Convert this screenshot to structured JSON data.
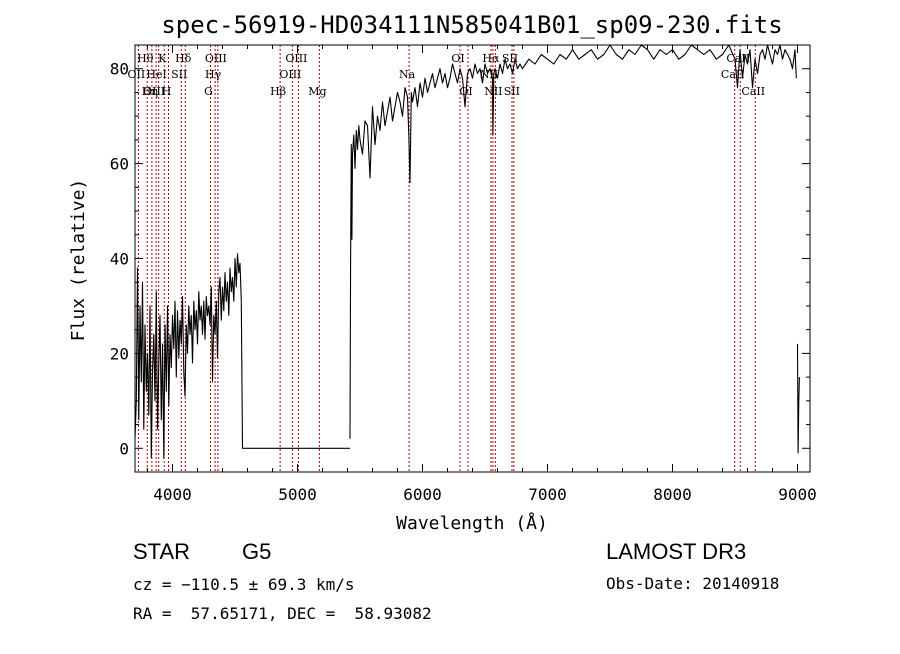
{
  "chart_data": {
    "type": "line",
    "title": "spec-56919-HD034111N585041B01_sp09-230.fits",
    "xlabel": "Wavelength (Å)",
    "ylabel": "Flux (relative)",
    "xlim": [
      3700,
      9100
    ],
    "ylim": [
      -5,
      85
    ],
    "xticks": [
      4000,
      5000,
      6000,
      7000,
      8000,
      9000
    ],
    "yticks": [
      0,
      20,
      40,
      60,
      80
    ],
    "grid": false,
    "legend": "none",
    "line_color": "#000000",
    "marker_color": "#aa0000",
    "segments": [
      {
        "x": [
          3700,
          3710,
          3720,
          3730,
          3740,
          3750,
          3760,
          3770,
          3780,
          3790,
          3800,
          3810,
          3820,
          3830,
          3840,
          3850,
          3860,
          3870,
          3880,
          3890,
          3900,
          3910,
          3920,
          3930,
          3940,
          3950,
          3960,
          3970,
          3980,
          3990,
          4000,
          4010,
          4020,
          4030,
          4040,
          4050,
          4060,
          4070,
          4080,
          4090,
          4100,
          4110,
          4120,
          4130,
          4140,
          4150,
          4160,
          4170,
          4180,
          4190,
          4200,
          4210,
          4220,
          4230,
          4240,
          4250,
          4260,
          4270,
          4280,
          4290,
          4300,
          4310,
          4320,
          4330,
          4340,
          4350,
          4360,
          4370,
          4380,
          4390,
          4400,
          4410,
          4420,
          4430,
          4440,
          4450,
          4460,
          4470,
          4480,
          4490,
          4500,
          4510,
          4520,
          4530,
          4540,
          4550
        ],
        "y": [
          2,
          10,
          38,
          6,
          30,
          14,
          35,
          4,
          26,
          12,
          20,
          7,
          30,
          -2,
          16,
          24,
          10,
          33,
          4,
          18,
          28,
          6,
          22,
          -2,
          26,
          12,
          30,
          9,
          24,
          17,
          28,
          21,
          31,
          15,
          29,
          19,
          27,
          22,
          32,
          16,
          11,
          26,
          20,
          30,
          24,
          28,
          18,
          31,
          25,
          29,
          22,
          33,
          27,
          30,
          24,
          31,
          23,
          32,
          28,
          30,
          26,
          34,
          14,
          28,
          24,
          31,
          19,
          33,
          36,
          27,
          34,
          29,
          37,
          31,
          35,
          28,
          38,
          33,
          36,
          31,
          40,
          34,
          41,
          37,
          39,
          31
        ]
      },
      {
        "x": [
          4550,
          4560,
          5000,
          5420
        ],
        "y": [
          31,
          0,
          0,
          0
        ]
      },
      {
        "x": [
          5420,
          5425,
          5430,
          5435,
          5440,
          5450,
          5460,
          5470,
          5480,
          5490,
          5500,
          5520,
          5540,
          5560,
          5580,
          5600,
          5620,
          5640,
          5660,
          5680,
          5700,
          5720,
          5740,
          5760,
          5780,
          5800,
          5820,
          5840,
          5860,
          5880,
          5890,
          5900,
          5910,
          5920,
          5940,
          5960,
          5980,
          6000,
          6020,
          6040,
          6060,
          6080,
          6100,
          6120,
          6140,
          6160,
          6180,
          6200,
          6220,
          6240,
          6260,
          6280,
          6300,
          6320,
          6340,
          6360,
          6380,
          6400,
          6420,
          6440,
          6460,
          6480,
          6500,
          6520,
          6540,
          6560,
          6563,
          6570,
          6580,
          6600,
          6620,
          6640,
          6660,
          6680,
          6700,
          6720,
          6740,
          6760,
          6780,
          6800,
          6850,
          6900,
          6950,
          7000,
          7050,
          7100,
          7150,
          7200,
          7250,
          7300,
          7350,
          7400,
          7450,
          7500,
          7550,
          7600,
          7650,
          7700,
          7750,
          7800,
          7850,
          7900,
          7950,
          8000,
          8050,
          8100,
          8150,
          8200,
          8250,
          8300,
          8350,
          8400,
          8450,
          8500,
          8520,
          8540,
          8560,
          8580,
          8600,
          8620,
          8640,
          8660,
          8680,
          8700,
          8720,
          8740,
          8760,
          8780,
          8800,
          8820,
          8840,
          8860,
          8880,
          8900,
          8920,
          8940,
          8960,
          8980,
          8990
        ],
        "y": [
          2,
          40,
          64,
          44,
          62,
          66,
          59,
          67,
          63,
          68,
          65,
          62,
          69,
          68,
          57,
          72,
          64,
          70,
          67,
          73,
          68,
          71,
          74,
          69,
          72,
          75,
          73,
          70,
          76,
          74,
          66,
          56,
          75,
          73,
          76,
          72,
          77,
          74,
          78,
          75,
          77,
          79,
          76,
          78,
          80,
          77,
          79,
          76,
          78,
          81,
          79,
          77,
          80,
          78,
          72,
          79,
          80,
          78,
          81,
          79,
          80,
          77,
          81,
          79,
          80,
          78,
          66,
          79,
          80,
          78,
          81,
          79,
          82,
          80,
          81,
          79,
          82,
          80,
          81,
          80,
          82,
          81,
          83,
          82,
          81,
          83,
          82,
          84,
          82,
          83,
          84,
          82,
          83,
          85,
          83,
          82,
          84,
          83,
          85,
          84,
          82,
          84,
          83,
          84,
          82,
          83,
          85,
          84,
          83,
          84,
          82,
          83,
          85,
          82,
          76,
          84,
          78,
          83,
          81,
          84,
          76,
          82,
          79,
          83,
          84,
          82,
          85,
          83,
          81,
          84,
          83,
          85,
          82,
          84,
          83,
          82,
          80,
          84,
          78
        ]
      },
      {
        "x": [
          9000,
          9005,
          9010,
          9015
        ],
        "y": [
          22,
          -1,
          10,
          15
        ]
      }
    ],
    "spectral_lines": [
      {
        "label": "OII",
        "x": 3727,
        "row": 1
      },
      {
        "label": "Hθ",
        "x": 3798,
        "row": 0
      },
      {
        "label": "Hη",
        "x": 3835,
        "row": 2
      },
      {
        "label": "OIII",
        "x": 3869,
        "row": 2
      },
      {
        "label": "HeI",
        "x": 3889,
        "row": 1
      },
      {
        "label": "K",
        "x": 3934,
        "row": 0
      },
      {
        "label": "H",
        "x": 3968,
        "row": 2
      },
      {
        "label": "SII",
        "x": 4070,
        "row": 1
      },
      {
        "label": "Hδ",
        "x": 4102,
        "row": 0
      },
      {
        "label": "G",
        "x": 4304,
        "row": 2
      },
      {
        "label": "Hγ",
        "x": 4341,
        "row": 1
      },
      {
        "label": "OIII",
        "x": 4363,
        "row": 0
      },
      {
        "label": "Hβ",
        "x": 4861,
        "row": 2
      },
      {
        "label": "OIII",
        "x": 4959,
        "row": 1
      },
      {
        "label": "OIII",
        "x": 5007,
        "row": 0
      },
      {
        "label": "Mg",
        "x": 5175,
        "row": 2
      },
      {
        "label": "Na",
        "x": 5893,
        "row": 1
      },
      {
        "label": "OI",
        "x": 6300,
        "row": 0
      },
      {
        "label": "OI",
        "x": 6364,
        "row": 2
      },
      {
        "label": "NII",
        "x": 6548,
        "row": 1
      },
      {
        "label": "Hα",
        "x": 6563,
        "row": 0
      },
      {
        "label": "NII",
        "x": 6583,
        "row": 2
      },
      {
        "label": "SII",
        "x": 6716,
        "row": 0
      },
      {
        "label": "SII",
        "x": 6731,
        "row": 2
      },
      {
        "label": "CaII",
        "x": 8498,
        "row": 1
      },
      {
        "label": "CaII",
        "x": 8542,
        "row": 0
      },
      {
        "label": "CaII",
        "x": 8662,
        "row": 2
      }
    ]
  },
  "info": {
    "object_class": "STAR",
    "subclass": "G5",
    "survey": "LAMOST DR3",
    "velocity": "cz = −110.5 ± 69.3 km/s",
    "obs_date": "Obs-Date: 20140918",
    "coords": "RA =  57.65171, DEC =  58.93082"
  }
}
